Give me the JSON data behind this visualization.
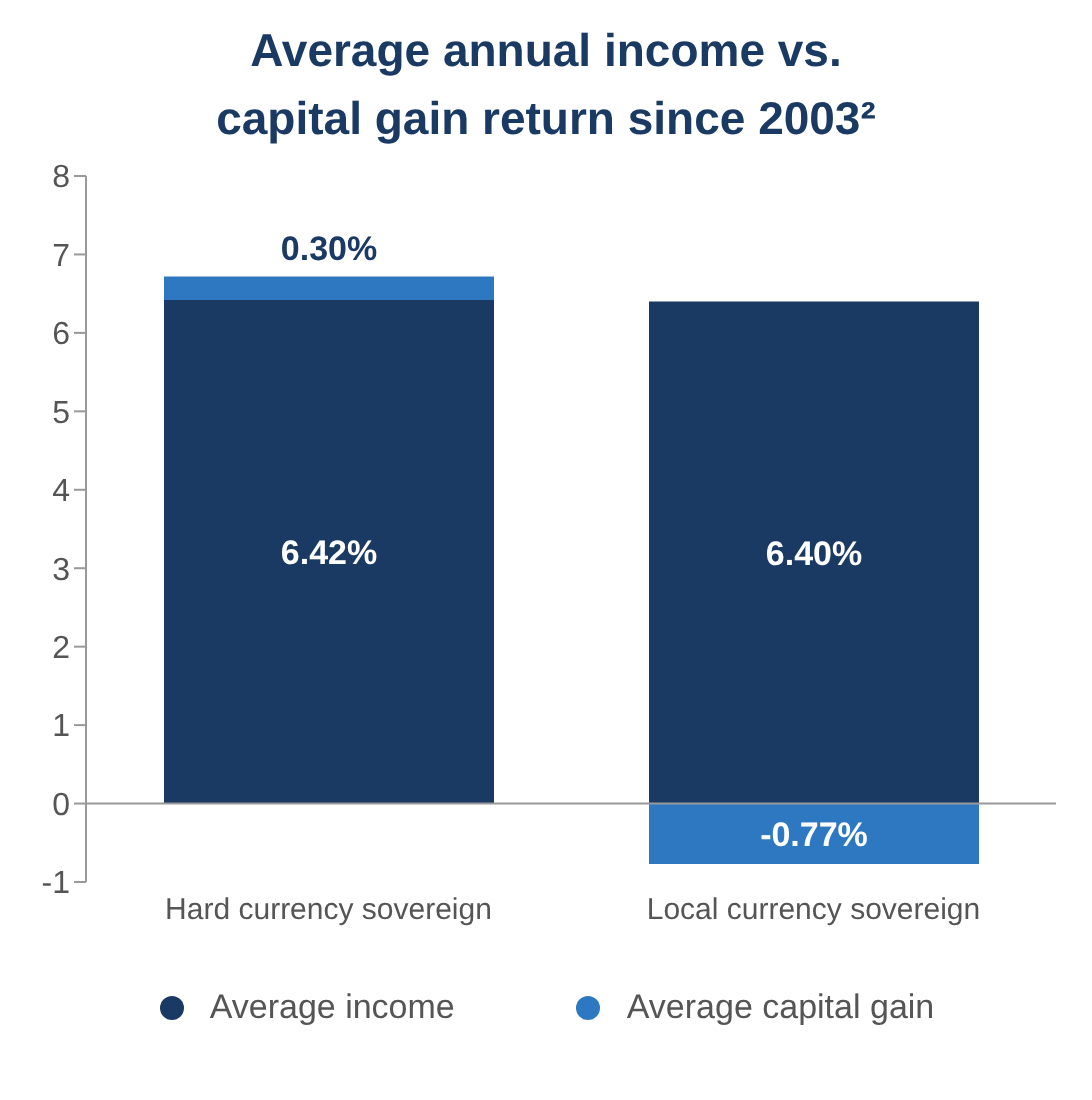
{
  "chart_data": {
    "type": "bar",
    "title": "Average annual income vs.\ncapital gain return since 2003²",
    "categories": [
      "Hard currency sovereign",
      "Local currency sovereign"
    ],
    "series": [
      {
        "name": "Average income",
        "color": "#1b3a63",
        "values": [
          6.42,
          6.4
        ],
        "value_labels": [
          "6.42%",
          "6.40%"
        ]
      },
      {
        "name": "Average capital gain",
        "color": "#2e78c2",
        "values": [
          0.3,
          -0.77
        ],
        "value_labels": [
          "0.30%",
          "-0.77%"
        ]
      }
    ],
    "stacked": true,
    "ylim": [
      -1,
      8
    ],
    "yticks": [
      -1,
      0,
      1,
      2,
      3,
      4,
      5,
      6,
      7,
      8
    ],
    "legend": "bottom"
  }
}
